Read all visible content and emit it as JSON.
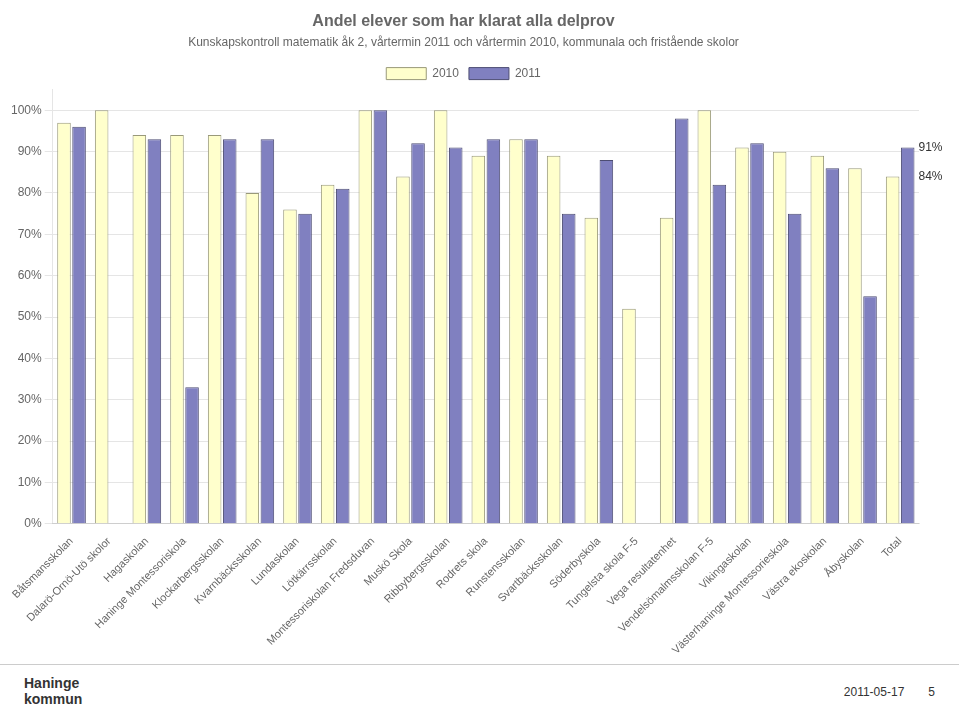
{
  "chart_data": {
    "type": "bar",
    "title": "Andel elever som har klarat alla delprov",
    "subtitle": "Kunskapskontroll matematik åk 2, vårtermin 2011 och vårtermin 2010, kommunala och fristående skolor",
    "categories": [
      "Båtsmansskolan",
      "Dalarö-Ornö-Utö skolor",
      "Hagaskolan",
      "Haninge Montessoriskola",
      "Klockarbergsskolan",
      "Kvarnbäcksskolan",
      "Lundaskolan",
      "Lötkärrsskolan",
      "Montessoriskolan Fredsduvan",
      "Muskö Skola",
      "Ribbybergsskolan",
      "Rodrets skola",
      "Runstensskolan",
      "Svartbäcksskolan",
      "Söderbyskola",
      "Tungelsta skola F-5",
      "Vega resultatenhet",
      "Vendelsömalmsskolan F-5",
      "Vikingaskolan",
      "Västerhaninge Montessorieskola",
      "Västra ekoskolan",
      "Åbyskolan",
      "Total"
    ],
    "series": [
      {
        "name": "2010",
        "color": "#FFFFCC",
        "values": [
          0.97,
          1.0,
          0.94,
          0.94,
          0.94,
          0.8,
          0.76,
          0.82,
          1.0,
          0.84,
          1.0,
          0.89,
          0.93,
          0.89,
          0.74,
          0.52,
          0.74,
          1.0,
          0.91,
          0.9,
          0.89,
          0.86,
          0.84
        ]
      },
      {
        "name": "2011",
        "color": "#8080C0",
        "values": [
          0.96,
          null,
          0.93,
          0.33,
          0.93,
          0.93,
          0.75,
          0.81,
          1.0,
          0.92,
          0.91,
          0.93,
          0.93,
          0.75,
          0.88,
          null,
          0.98,
          0.82,
          0.92,
          0.75,
          0.86,
          0.55,
          0.91
        ]
      }
    ],
    "ylim": [
      0,
      1.05
    ],
    "yticks": [
      {
        "value": 0,
        "label": "0%"
      },
      {
        "value": 0.1,
        "label": "10%"
      },
      {
        "value": 0.2,
        "label": "20%"
      },
      {
        "value": 0.3,
        "label": "30%"
      },
      {
        "value": 0.4,
        "label": "40%"
      },
      {
        "value": 0.5,
        "label": "50%"
      },
      {
        "value": 0.6,
        "label": "60%"
      },
      {
        "value": 0.7,
        "label": "70%"
      },
      {
        "value": 0.8,
        "label": "80%"
      },
      {
        "value": 0.9,
        "label": "90%"
      },
      {
        "value": 1.0,
        "label": "100%"
      }
    ],
    "grid": true,
    "legend": "top",
    "annotations": [
      {
        "text": "91%",
        "x": "Total",
        "y": 0.91
      },
      {
        "text": "84%",
        "x": "Total",
        "y": 0.84
      }
    ],
    "footer": [
      "Haninge\nkommun",
      "2011-05-17",
      "5"
    ]
  }
}
